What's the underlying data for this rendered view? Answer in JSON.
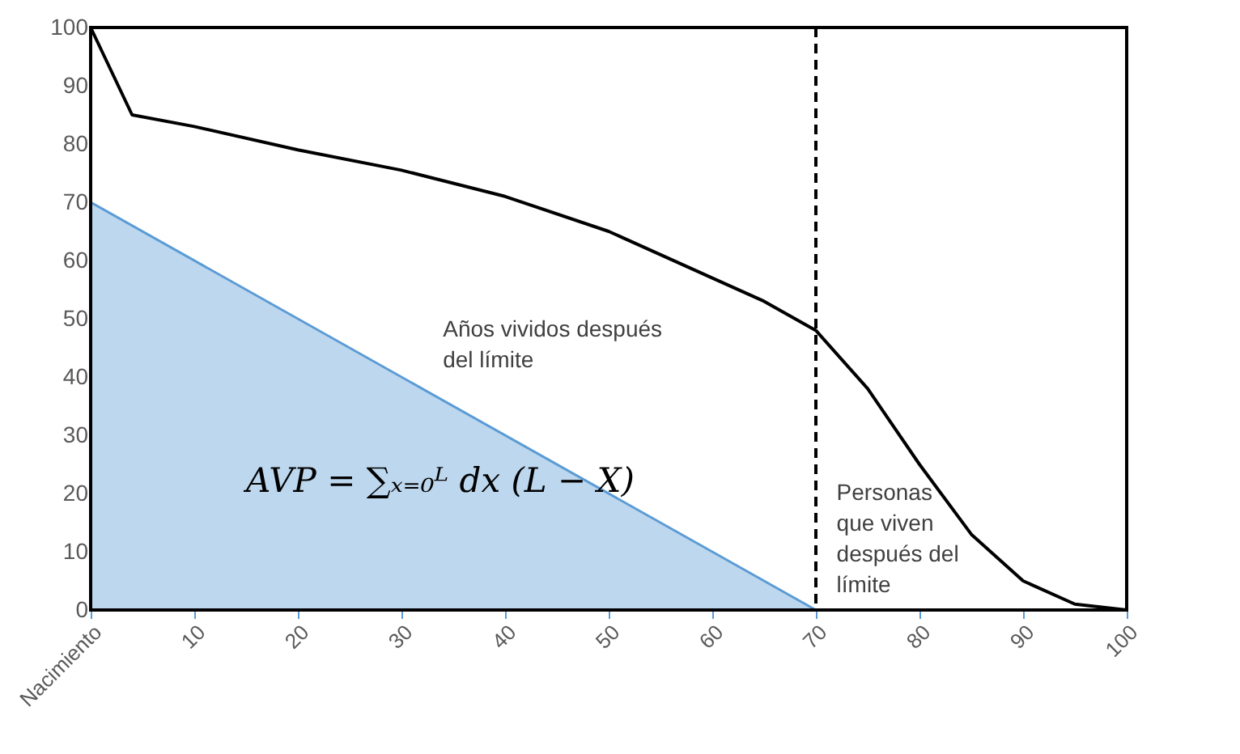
{
  "chart_data": {
    "type": "line",
    "series": [
      {
        "type": "area",
        "color": "#bdd7ee",
        "x": [
          0,
          70
        ],
        "values": [
          70,
          0
        ]
      },
      {
        "color": "#000000",
        "x": [
          0,
          4,
          10,
          20,
          30,
          40,
          50,
          60,
          65,
          70,
          75,
          80,
          85,
          90,
          95,
          100
        ],
        "values": [
          100,
          85,
          83,
          79,
          75.5,
          71,
          65,
          57,
          53,
          48,
          38,
          25,
          13,
          5,
          1,
          0
        ]
      }
    ],
    "xlim": [
      0,
      100
    ],
    "ylim": [
      0,
      100
    ],
    "xticks": [
      {
        "value": 0,
        "label": "Nacimiento"
      },
      10,
      20,
      30,
      40,
      50,
      60,
      70,
      80,
      90,
      100
    ],
    "yticks": [
      0,
      10,
      20,
      30,
      40,
      50,
      60,
      70,
      80,
      90,
      100
    ],
    "ref_lines": [
      {
        "axis": "x",
        "value": 70,
        "color": "#000000",
        "line_style": "dashed"
      }
    ],
    "annotations": [
      "Años vividos después\ndel límite",
      "AVP = ∑ₓ₌₀ᴸ dx (L − X)",
      "Personas\nque viven\ndespués del\nlímite"
    ],
    "grid": false,
    "marker": "none",
    "line_style": "solid"
  }
}
